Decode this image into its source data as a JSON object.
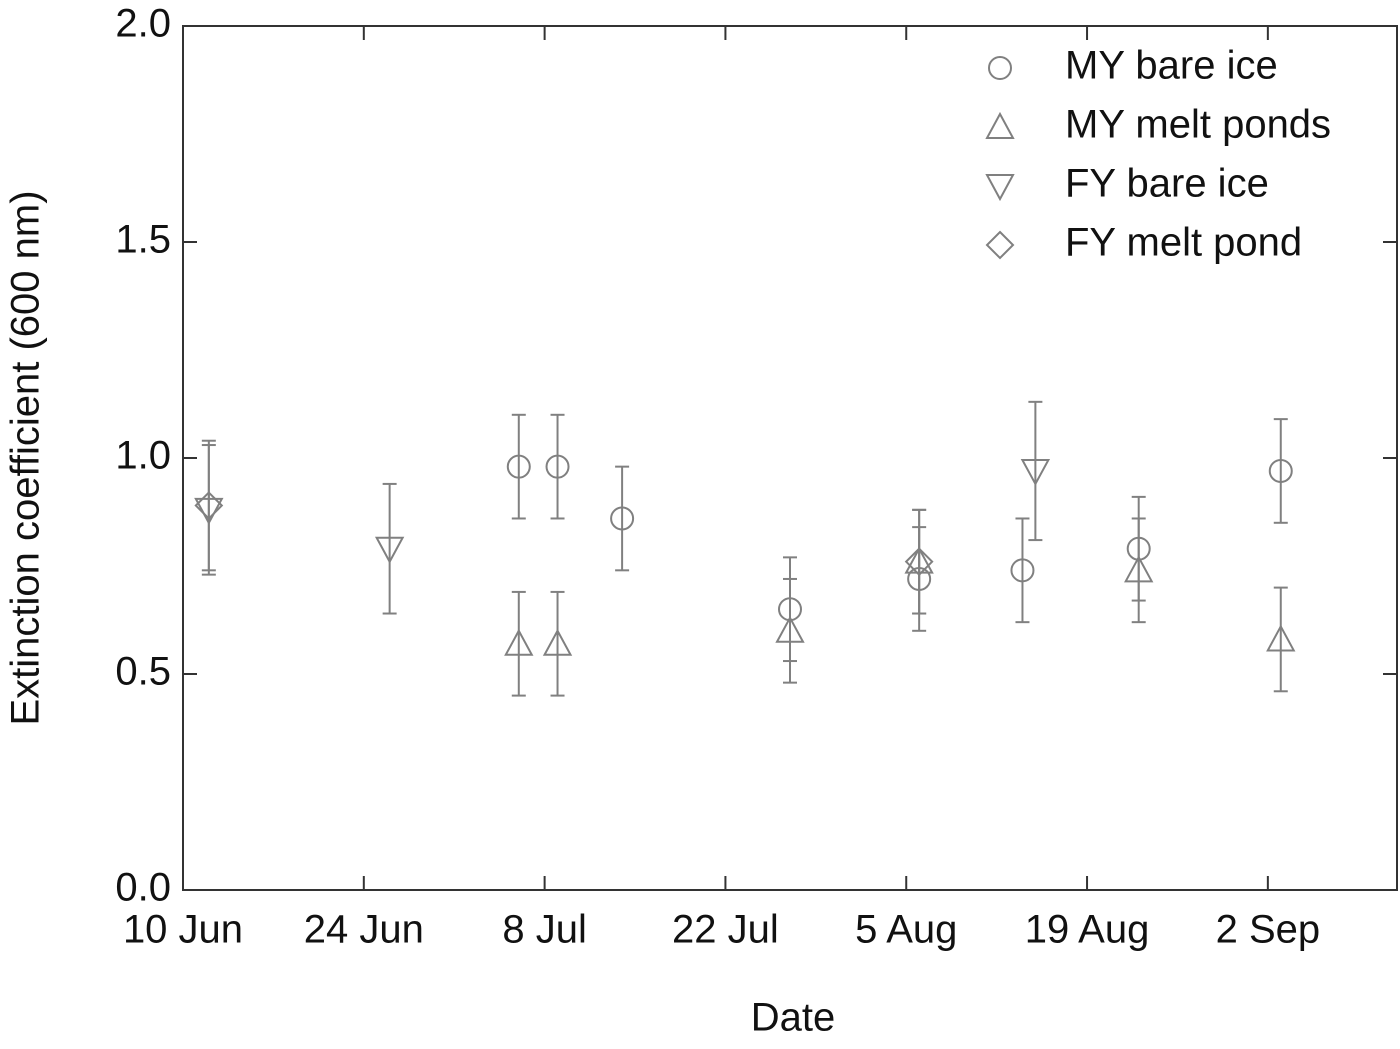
{
  "chart_data": {
    "type": "scatter",
    "x_label": "Date",
    "y_label": "Extinction coefficient (600 nm)",
    "xlim": [
      "10 Jun",
      "12 Sep"
    ],
    "xticks": [
      "10 Jun",
      "24 Jun",
      "8 Jul",
      "22 Jul",
      "5 Aug",
      "19 Aug",
      "2 Sep"
    ],
    "ylim": [
      0,
      2
    ],
    "yticks": [
      {
        "value": 0,
        "label": "0.0"
      },
      0.5,
      {
        "value": 1,
        "label": "1.0"
      },
      1.5,
      {
        "value": 2,
        "label": "2.0"
      }
    ],
    "legend": "top-right",
    "series": [
      {
        "name": "MY bare ice",
        "marker": "circle",
        "color": "#808080",
        "x": [
          "6 Jul",
          "9 Jul",
          "14 Jul",
          "27 Jul",
          "6 Aug",
          "14 Aug",
          "23 Aug",
          "3 Sep"
        ],
        "values": [
          0.98,
          0.98,
          0.86,
          0.65,
          0.72,
          0.74,
          0.79,
          0.97
        ],
        "errors": [
          0.12,
          0.12,
          0.12,
          0.12,
          0.12,
          0.12,
          0.12,
          0.12
        ]
      },
      {
        "name": "MY melt ponds",
        "marker": "triangle-up",
        "color": "#808080",
        "x": [
          "6 Jul",
          "9 Jul",
          "27 Jul",
          "6 Aug",
          "23 Aug",
          "3 Sep"
        ],
        "values": [
          0.57,
          0.57,
          0.6,
          0.76,
          0.74,
          0.58
        ],
        "errors": [
          0.12,
          0.12,
          0.12,
          0.12,
          0.12,
          0.12
        ]
      },
      {
        "name": "FY bare ice",
        "marker": "triangle-down",
        "color": "#808080",
        "x": [
          "12 Jun",
          "26 Jun",
          "15 Aug"
        ],
        "values": [
          0.88,
          0.79,
          0.97
        ],
        "errors": [
          0.15,
          0.15,
          0.16
        ]
      },
      {
        "name": "FY melt pond",
        "marker": "diamond",
        "color": "#808080",
        "x": [
          "12 Jun",
          "6 Aug"
        ],
        "values": [
          0.89,
          0.76
        ],
        "errors": [
          0.15,
          0.12
        ]
      }
    ]
  }
}
